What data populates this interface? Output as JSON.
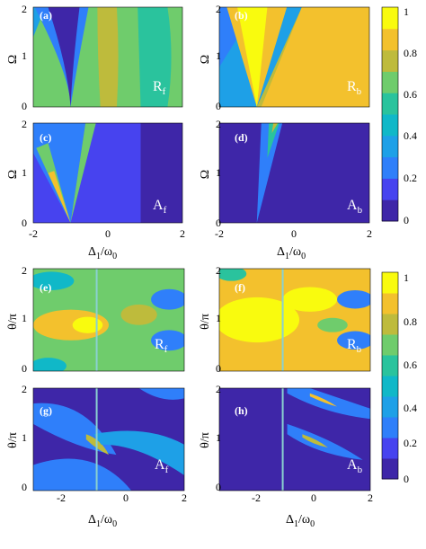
{
  "figure": {
    "colors": {
      "colormap": [
        "#3e26a8",
        "#4743ef",
        "#2f7ffa",
        "#1ea0e7",
        "#10b8c8",
        "#2ac39d",
        "#6fcc6c",
        "#bebb3c",
        "#f3c12d",
        "#f9fb0e"
      ]
    },
    "panels": [
      {
        "id": "a",
        "label": "(a)",
        "quantity": "R",
        "sub": "f",
        "type": "Rf_top"
      },
      {
        "id": "b",
        "label": "(b)",
        "quantity": "R",
        "sub": "b",
        "type": "Rb_top"
      },
      {
        "id": "c",
        "label": "(c)",
        "quantity": "A",
        "sub": "f",
        "type": "Af_top"
      },
      {
        "id": "d",
        "label": "(d)",
        "quantity": "A",
        "sub": "b",
        "type": "Ab_top"
      },
      {
        "id": "e",
        "label": "(e)",
        "quantity": "R",
        "sub": "f",
        "type": "Rf_bot"
      },
      {
        "id": "f",
        "label": "(f)",
        "quantity": "R",
        "sub": "b",
        "type": "Rb_bot"
      },
      {
        "id": "g",
        "label": "(g)",
        "quantity": "A",
        "sub": "f",
        "type": "Af_bot"
      },
      {
        "id": "h",
        "label": "(h)",
        "quantity": "A",
        "sub": "b",
        "type": "Ab_bot"
      }
    ],
    "top_block": {
      "ylabel": "Ω",
      "yticks": [
        "0",
        "1",
        "2"
      ],
      "xticks": [
        "-2",
        "0",
        "2"
      ],
      "xlabel_main": "Δ",
      "xlabel_sub1": "1",
      "xlabel_slash": "/ω",
      "xlabel_sub2": "0"
    },
    "bottom_block": {
      "ylabel": "θ/π",
      "yticks": [
        "0",
        "1",
        "2"
      ],
      "xticks": [
        "-2",
        "0",
        "2"
      ],
      "xlabel_main": "Δ",
      "xlabel_sub1": "1",
      "xlabel_slash": "/ω",
      "xlabel_sub2": "0"
    },
    "colorbar_top": {
      "ticks": [
        "0",
        "0.2",
        "0.4",
        "0.6",
        "0.8",
        "1"
      ]
    },
    "colorbar_bottom": {
      "ticks": [
        "0",
        "0.2",
        "0.4",
        "0.6",
        "0.8",
        "1"
      ]
    }
  },
  "chart_data": [
    {
      "type": "heatmap",
      "panel": "(a)",
      "label": "R_f",
      "x_range": [
        -2,
        2
      ],
      "y_range": [
        0,
        2
      ],
      "value_range": [
        0,
        1
      ],
      "features": "V-shaped minimum starting at Δ1/ω0 = -1, y = 0; background values 0.4–0.7"
    },
    {
      "type": "heatmap",
      "panel": "(b)",
      "label": "R_b",
      "x_range": [
        -2,
        2
      ],
      "y_range": [
        0,
        2
      ],
      "value_range": [
        0,
        1
      ],
      "features": "V-shaped maximum near 1 opening from Δ1/ω0 = -1; values near 0.2–0.4 elsewhere on the left"
    },
    {
      "type": "heatmap",
      "panel": "(c)",
      "label": "A_f",
      "x_range": [
        -2,
        2
      ],
      "y_range": [
        0,
        2
      ],
      "value_range": [
        0,
        1
      ],
      "features": "V-shaped absorption ridge from (-1, 0) with peak about 0.8; near 0 outside"
    },
    {
      "type": "heatmap",
      "panel": "(d)",
      "label": "A_b",
      "x_range": [
        -2,
        2
      ],
      "y_range": [
        0,
        2
      ],
      "value_range": [
        0,
        1
      ],
      "features": "narrow wedge from (-1, 0) widening toward upper right, values up to about 0.6"
    },
    {
      "type": "heatmap",
      "panel": "(e)",
      "label": "R_f",
      "x_range": [
        -3,
        2
      ],
      "y_range": [
        0,
        2
      ],
      "value_range": [
        0,
        1
      ],
      "features": "periodic bands in θ; vertical line at Δ1/ω0 = -1"
    },
    {
      "type": "heatmap",
      "panel": "(f)",
      "label": "R_b",
      "x_range": [
        -3,
        2
      ],
      "y_range": [
        0,
        2
      ],
      "value_range": [
        0,
        1
      ],
      "features": "high values near 1 around θ/π = 1; periodic bands; vertical line at Δ1/ω0 = -1"
    },
    {
      "type": "heatmap",
      "panel": "(g)",
      "label": "A_f",
      "x_range": [
        -3,
        2
      ],
      "y_range": [
        0,
        2
      ],
      "value_range": [
        0,
        1
      ],
      "features": "bands tilted downward; peak about 0.8 near (-1, 1.2)"
    },
    {
      "type": "heatmap",
      "panel": "(h)",
      "label": "A_b",
      "x_range": [
        -3,
        2
      ],
      "y_range": [
        0,
        2
      ],
      "value_range": [
        0,
        1
      ],
      "features": "two tilted streaks near θ/π = 1.8 and 0.9 to the right of Δ1/ω0 = 0"
    }
  ]
}
